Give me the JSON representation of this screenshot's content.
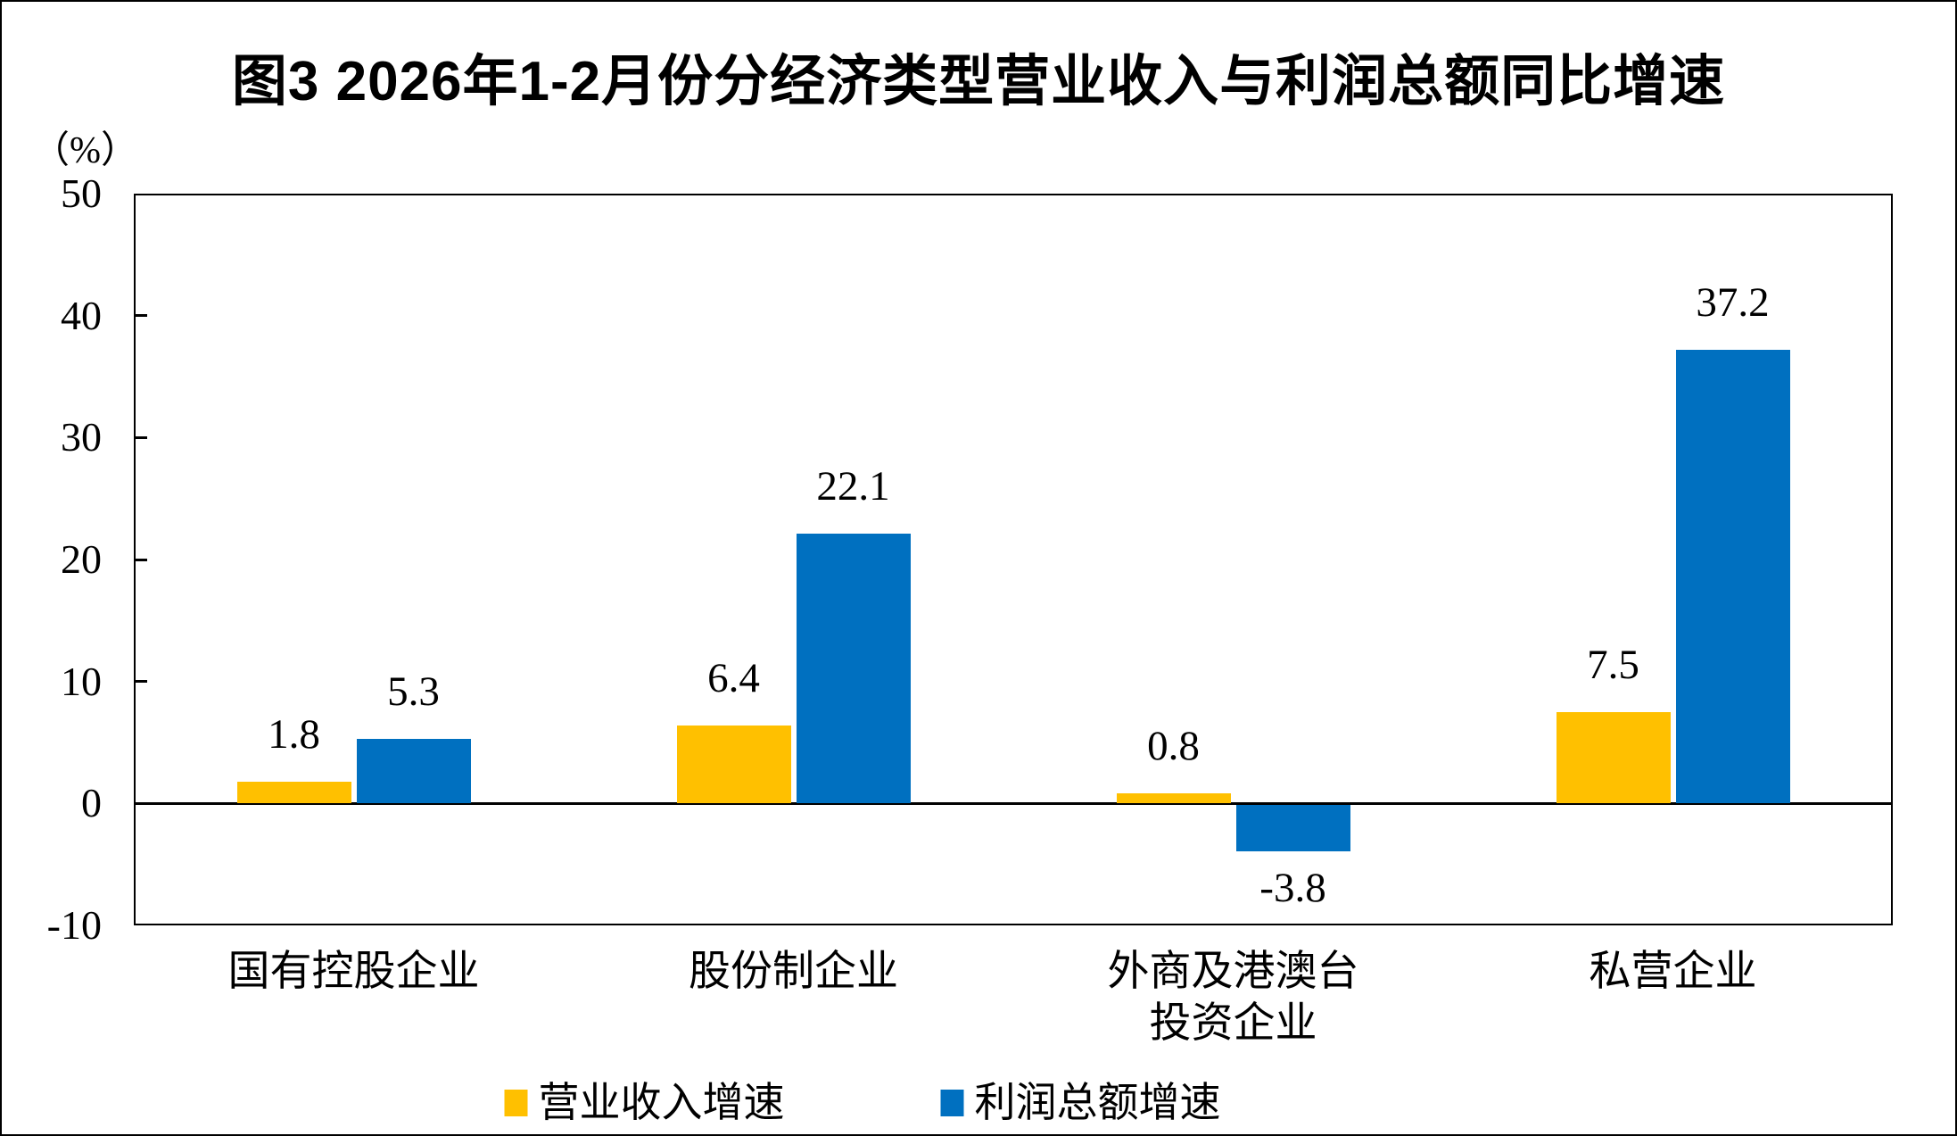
{
  "title": "图3  2026年1-2月份分经济类型营业收入与利润总额同比增速",
  "unit_label": "（%）",
  "chart_data": {
    "type": "bar",
    "categories": [
      "国有控股企业",
      "股份制企业",
      "外商及港澳台\n投资企业",
      "私营企业"
    ],
    "series": [
      {
        "name": "营业收入增速",
        "color": "#FFC000",
        "values": [
          1.8,
          6.4,
          0.8,
          7.5
        ]
      },
      {
        "name": "利润总额增速",
        "color": "#0070C0",
        "values": [
          5.3,
          22.1,
          -3.8,
          37.2
        ]
      }
    ],
    "title": "图3  2026年1-2月份分经济类型营业收入与利润总额同比增速",
    "xlabel": "",
    "ylabel": "（%）",
    "ylim": [
      -10,
      50
    ],
    "yticks": [
      50,
      40,
      30,
      20,
      10,
      0,
      -10
    ],
    "grid": false,
    "legend_position": "bottom",
    "value_labels_decimals": 1
  }
}
